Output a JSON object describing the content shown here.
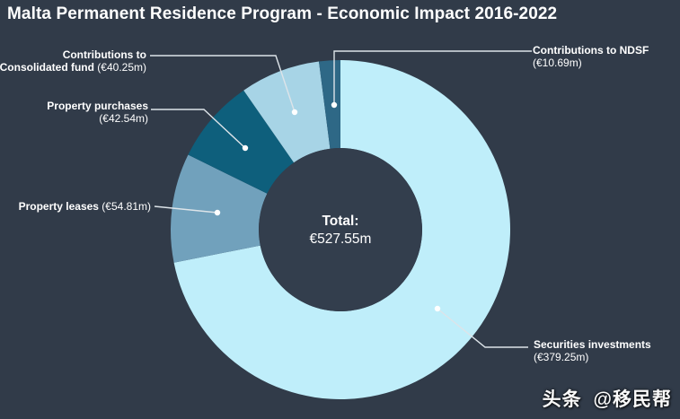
{
  "page": {
    "title": "Malta Permanent Residence Program - Economic Impact 2016-2022",
    "watermark": {
      "brand": "头条",
      "handle": "@移民帮"
    }
  },
  "colors": {
    "background": "#313b49",
    "hole": "#333e4d",
    "leader_line": "#dde4e9",
    "leader_dot": "#ffffff",
    "text": "#ffffff"
  },
  "chart_data": {
    "type": "pie",
    "donut": true,
    "title": "Malta Permanent Residence Program - Economic Impact 2016-2022",
    "unit": "€m",
    "total": 527.55,
    "total_label": "Total:",
    "total_value": "€527.55m",
    "legend_position": "callouts",
    "slices": [
      {
        "label": "Securities investments",
        "value": 379.25,
        "display_value": "(€379.25m)",
        "color": "#bfeefa"
      },
      {
        "label": "Property leases",
        "value": 54.81,
        "display_value": "(€54.81m)",
        "color": "#71a1bc"
      },
      {
        "label": "Property purchases",
        "value": 42.54,
        "display_value": "(€42.54m)",
        "color": "#0e5f7c"
      },
      {
        "label": "Contributions to Consolidated fund",
        "value": 40.25,
        "display_value": "(€40.25m)",
        "color": "#a7d4e6"
      },
      {
        "label": "Contributions to NDSF",
        "value": 10.69,
        "display_value": "(€10.69m)",
        "color": "#2e6886"
      }
    ]
  },
  "callouts": [
    {
      "id": "securities-investments",
      "lines": [
        [
          {
            "t": "Securities investments",
            "b": true
          }
        ],
        [
          {
            "t": "(€379.25m)",
            "b": false
          }
        ]
      ]
    },
    {
      "id": "property-leases",
      "lines": [
        [
          {
            "t": "Property leases",
            "b": true
          },
          {
            "t": " (€54.81m)",
            "b": false
          }
        ]
      ]
    },
    {
      "id": "property-purchases",
      "lines": [
        [
          {
            "t": "Property purchases",
            "b": true
          }
        ],
        [
          {
            "t": "(€42.54m)",
            "b": false
          }
        ]
      ]
    },
    {
      "id": "consolidated-fund",
      "lines": [
        [
          {
            "t": "Contributions to",
            "b": true
          }
        ],
        [
          {
            "t": "Consolidated fund",
            "b": true
          },
          {
            "t": " (€40.25m)",
            "b": false
          }
        ]
      ]
    },
    {
      "id": "ndsf",
      "lines": [
        [
          {
            "t": "Contributions to NDSF",
            "b": true
          }
        ],
        [
          {
            "t": "(€10.69m)",
            "b": false
          }
        ]
      ]
    }
  ]
}
